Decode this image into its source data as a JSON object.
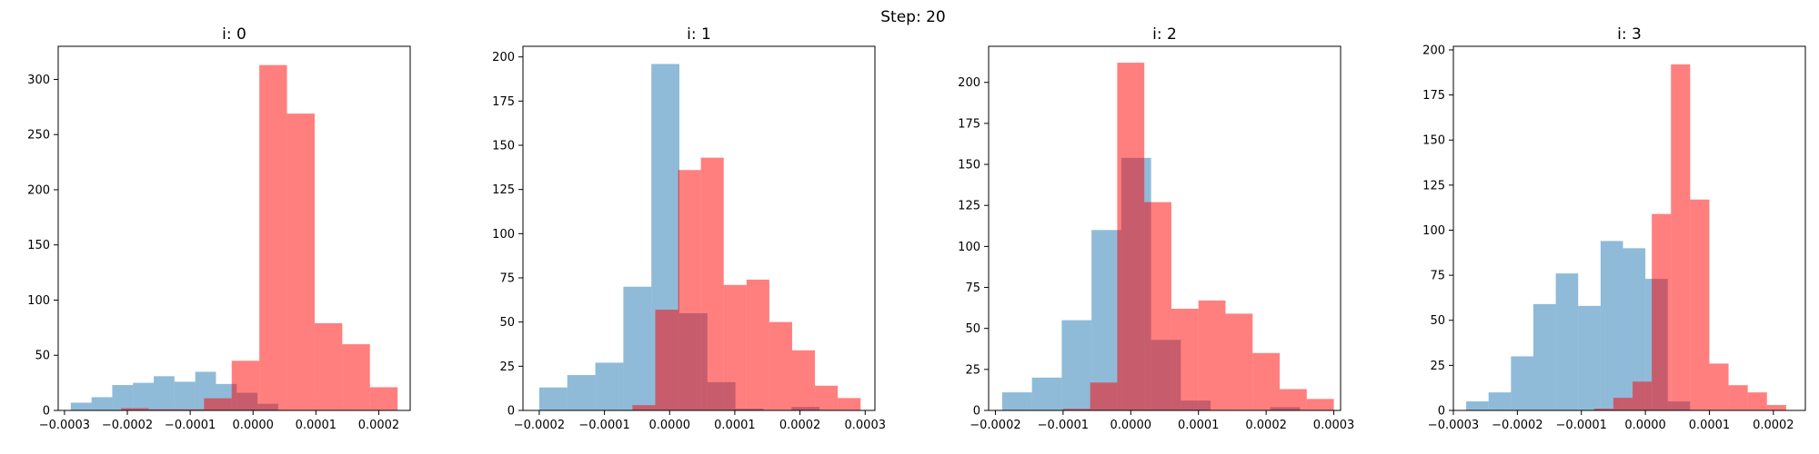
{
  "figure": {
    "suptitle": "Step: 20"
  },
  "colors": {
    "blue": "#1f77b4",
    "red": "#ff0000",
    "blue_alpha": 0.5,
    "red_alpha": 0.5
  },
  "chart_data": [
    {
      "type": "histogram",
      "title": "i: 0",
      "xlim": [
        -0.00031,
        0.00025
      ],
      "ylim": [
        0,
        330
      ],
      "xticks": [
        -0.0003,
        -0.0002,
        -0.0001,
        0.0,
        0.0001,
        0.0002
      ],
      "xtick_labels": [
        "−0.0003",
        "−0.0002",
        "−0.0001",
        "0.0000",
        "0.0001",
        "0.0002"
      ],
      "yticks": [
        0,
        50,
        100,
        150,
        200,
        250,
        300
      ],
      "ytick_labels": [
        "0",
        "50",
        "100",
        "150",
        "200",
        "250",
        "300"
      ],
      "series": [
        {
          "color": "blue",
          "edges": [
            -0.00029,
            -0.000257,
            -0.000224,
            -0.000191,
            -0.000158,
            -0.000125,
            -9.2e-05,
            -5.9e-05,
            -2.6e-05,
            7e-06,
            4e-05
          ],
          "counts": [
            7,
            12,
            23,
            25,
            31,
            26,
            35,
            24,
            16,
            6
          ]
        },
        {
          "color": "red",
          "edges": [
            -0.00021,
            -0.000166,
            -0.000122,
            -7.8e-05,
            -3.4e-05,
            1e-05,
            5.4e-05,
            9.8e-05,
            0.000142,
            0.000186,
            0.00023
          ],
          "counts": [
            2,
            1,
            1,
            11,
            45,
            313,
            269,
            79,
            60,
            21
          ]
        }
      ]
    },
    {
      "type": "histogram",
      "title": "i: 1",
      "xlim": [
        -0.000225,
        0.000315
      ],
      "ylim": [
        0,
        206
      ],
      "xticks": [
        -0.0002,
        -0.0001,
        0.0,
        0.0001,
        0.0002,
        0.0003
      ],
      "xtick_labels": [
        "−0.0002",
        "−0.0001",
        "0.0000",
        "0.0001",
        "0.0002",
        "0.0003"
      ],
      "yticks": [
        0,
        25,
        50,
        75,
        100,
        125,
        150,
        175,
        200
      ],
      "ytick_labels": [
        "0",
        "25",
        "50",
        "75",
        "100",
        "125",
        "150",
        "175",
        "200"
      ],
      "series": [
        {
          "color": "blue",
          "edges": [
            -0.0002,
            -0.000157,
            -0.000114,
            -7.1e-05,
            -2.8e-05,
            1.5e-05,
            5.8e-05,
            0.000101,
            0.000144,
            0.000187,
            0.00023
          ],
          "counts": [
            13,
            20,
            27,
            70,
            196,
            55,
            16,
            1,
            0,
            2
          ]
        },
        {
          "color": "red",
          "edges": [
            -5.7e-05,
            -2.2e-05,
            1.3e-05,
            4.8e-05,
            8.3e-05,
            0.000118,
            0.000153,
            0.000188,
            0.000223,
            0.000258,
            0.000293
          ],
          "counts": [
            3,
            57,
            136,
            143,
            71,
            74,
            50,
            34,
            14,
            7
          ]
        }
      ]
    },
    {
      "type": "histogram",
      "title": "i: 2",
      "xlim": [
        -0.00021,
        0.00031
      ],
      "ylim": [
        0,
        222
      ],
      "xticks": [
        -0.0002,
        -0.0001,
        0.0,
        0.0001,
        0.0002,
        0.0003
      ],
      "xtick_labels": [
        "−0.0002",
        "−0.0001",
        "0.0000",
        "0.0001",
        "0.0002",
        "0.0003"
      ],
      "yticks": [
        0,
        25,
        50,
        75,
        100,
        125,
        150,
        175,
        200
      ],
      "ytick_labels": [
        "0",
        "25",
        "50",
        "75",
        "100",
        "125",
        "150",
        "175",
        "200"
      ],
      "series": [
        {
          "color": "blue",
          "edges": [
            -0.00019,
            -0.000146,
            -0.000102,
            -5.8e-05,
            -1.4e-05,
            3e-05,
            7.4e-05,
            0.000118,
            0.000162,
            0.000206,
            0.00025
          ],
          "counts": [
            11,
            20,
            55,
            110,
            154,
            43,
            6,
            0,
            0,
            2
          ]
        },
        {
          "color": "red",
          "edges": [
            -0.0001,
            -6e-05,
            -2e-05,
            2e-05,
            6e-05,
            0.0001,
            0.00014,
            0.00018,
            0.00022,
            0.00026,
            0.0003
          ],
          "counts": [
            1,
            17,
            212,
            127,
            62,
            67,
            59,
            35,
            13,
            7
          ]
        }
      ]
    },
    {
      "type": "histogram",
      "title": "i: 3",
      "xlim": [
        -0.0003,
        0.00025
      ],
      "ylim": [
        0,
        202
      ],
      "xticks": [
        -0.0003,
        -0.0002,
        -0.0001,
        0.0,
        0.0001,
        0.0002
      ],
      "xtick_labels": [
        "−0.0003",
        "−0.0002",
        "−0.0001",
        "0.0000",
        "0.0001",
        "0.0002"
      ],
      "yticks": [
        0,
        25,
        50,
        75,
        100,
        125,
        150,
        175,
        200
      ],
      "ytick_labels": [
        "0",
        "25",
        "50",
        "75",
        "100",
        "125",
        "150",
        "175",
        "200"
      ],
      "series": [
        {
          "color": "blue",
          "edges": [
            -0.00028,
            -0.000245,
            -0.00021,
            -0.000175,
            -0.00014,
            -0.000105,
            -7e-05,
            -3.5e-05,
            0.0,
            3.5e-05,
            7e-05
          ],
          "counts": [
            5,
            10,
            30,
            59,
            76,
            58,
            94,
            90,
            73,
            5
          ]
        },
        {
          "color": "red",
          "edges": [
            -8e-05,
            -5e-05,
            -2e-05,
            1e-05,
            4e-05,
            7e-05,
            0.0001,
            0.00013,
            0.00016,
            0.00019,
            0.00022
          ],
          "counts": [
            1,
            7,
            16,
            109,
            192,
            117,
            26,
            14,
            10,
            3
          ]
        }
      ]
    }
  ]
}
